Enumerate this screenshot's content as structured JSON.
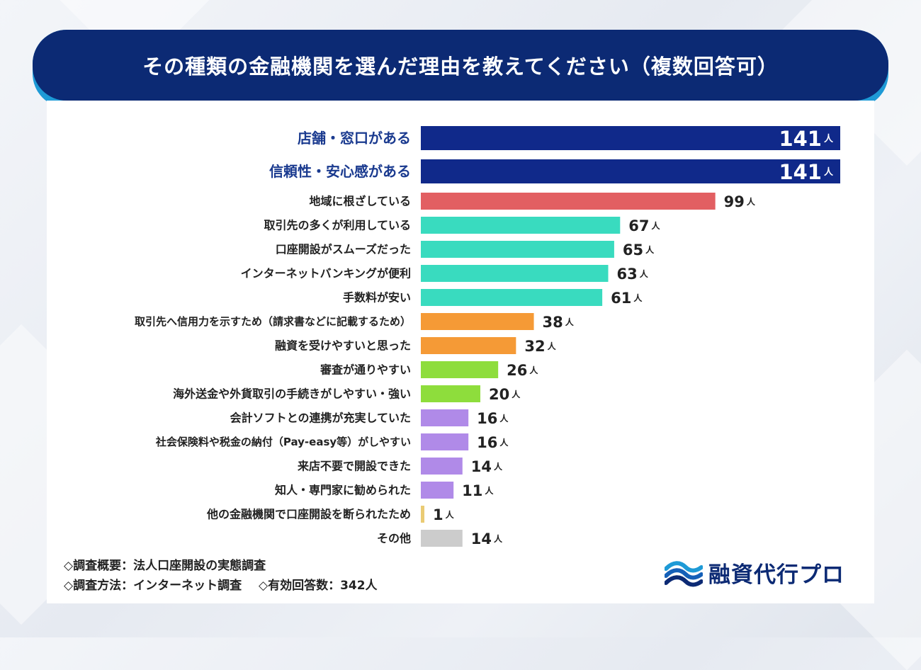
{
  "colors": {
    "navy": "#0c2a74",
    "header_accent": "#1e9ad6",
    "highlight_label": "#1a3a8f",
    "bar_navy": "#10298a",
    "bar_red": "#e25f62",
    "bar_teal": "#39dbbf",
    "bar_orange": "#f59a36",
    "bar_green": "#8edd3c",
    "bar_purple": "#b08ae8",
    "bar_yellow": "#eacb74",
    "bar_gray": "#cccccc"
  },
  "header": {
    "title": "その種類の金融機関を選んだ理由を教えてください（複数回答可）"
  },
  "chart_data": {
    "type": "bar",
    "orientation": "horizontal",
    "title": "その種類の金融機関を選んだ理由を教えてください（複数回答可）",
    "unit": "人",
    "xlim": [
      0,
      141
    ],
    "grid": false,
    "categories": [
      "店舗・窓口がある",
      "信頼性・安心感がある",
      "地域に根ざしている",
      "取引先の多くが利用している",
      "口座開設がスムーズだった",
      "インターネットバンキングが便利",
      "手数料が安い",
      "取引先へ信用力を示すため（請求書などに記載するため）",
      "融資を受けやすいと思った",
      "審査が通りやすい",
      "海外送金や外貨取引の手続きがしやすい・強い",
      "会計ソフトとの連携が充実していた",
      "社会保険料や税金の納付（Pay-easy等）がしやすい",
      "来店不要で開設できた",
      "知人・専門家に勧められた",
      "他の金融機関で口座開設を断られたため",
      "その他"
    ],
    "values": [
      141,
      141,
      99,
      67,
      65,
      63,
      61,
      38,
      32,
      26,
      20,
      16,
      16,
      14,
      11,
      1,
      14
    ],
    "bar_colors": [
      "#10298a",
      "#10298a",
      "#e25f62",
      "#39dbbf",
      "#39dbbf",
      "#39dbbf",
      "#39dbbf",
      "#f59a36",
      "#f59a36",
      "#8edd3c",
      "#8edd3c",
      "#b08ae8",
      "#b08ae8",
      "#b08ae8",
      "#b08ae8",
      "#eacb74",
      "#cccccc"
    ],
    "highlighted": [
      true,
      true,
      false,
      false,
      false,
      false,
      false,
      false,
      false,
      false,
      false,
      false,
      false,
      false,
      false,
      false,
      false
    ]
  },
  "footer": {
    "line1": "◇調査概要：法人口座開設の実態調査",
    "line2_method": "◇調査方法：インターネット調査",
    "line2_respondents": "◇有効回答数：342人"
  },
  "logo": {
    "text": "融資代行プロ",
    "icon": "wave-icon"
  }
}
